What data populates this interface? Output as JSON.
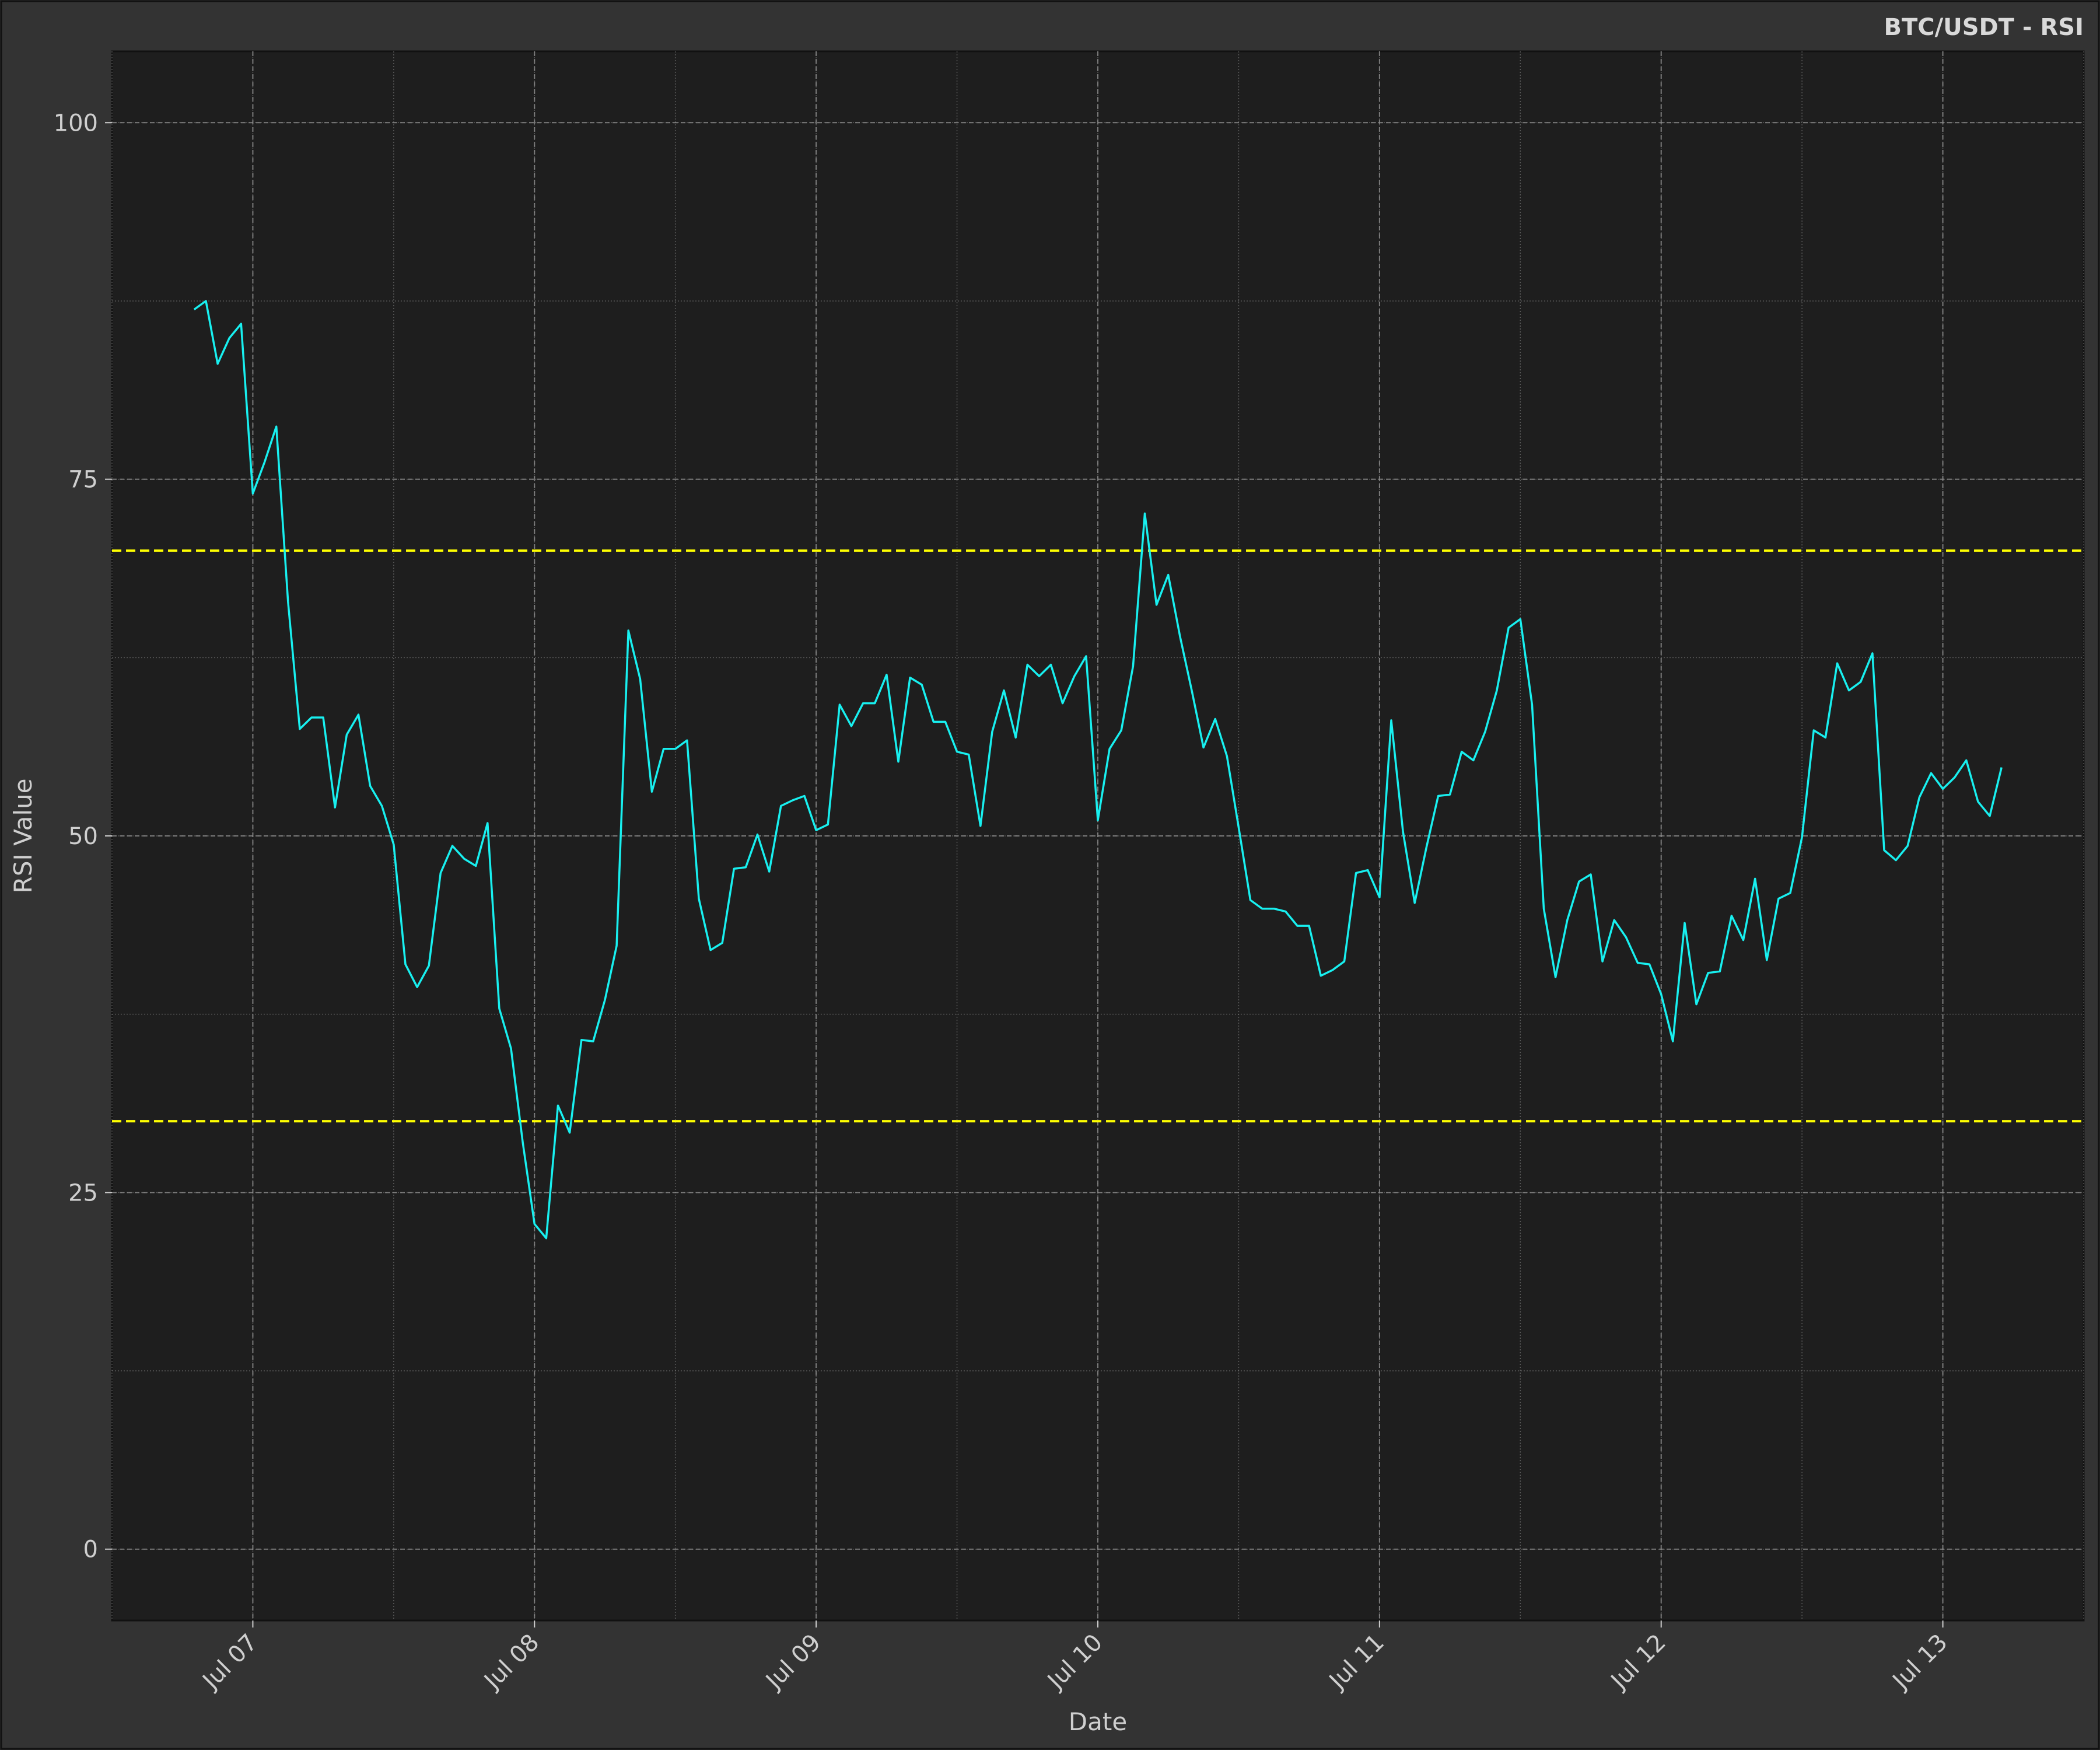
{
  "chart_data": {
    "type": "line",
    "title": "BTC/USDT - RSI",
    "xlabel": "Date",
    "ylabel": "RSI Value",
    "ylim": [
      -5,
      105
    ],
    "xlim": [
      "2025-07-06T12:00",
      "2025-07-13T12:00"
    ],
    "yticks": [
      0,
      25,
      50,
      75,
      100
    ],
    "xticks": [
      {
        "date": "2025-07-07T00:00",
        "label": "Jul 07"
      },
      {
        "date": "2025-07-08T00:00",
        "label": "Jul 08"
      },
      {
        "date": "2025-07-09T00:00",
        "label": "Jul 09"
      },
      {
        "date": "2025-07-10T00:00",
        "label": "Jul 10"
      },
      {
        "date": "2025-07-11T00:00",
        "label": "Jul 11"
      },
      {
        "date": "2025-07-12T00:00",
        "label": "Jul 12"
      },
      {
        "date": "2025-07-13T00:00",
        "label": "Jul 13"
      }
    ],
    "grid": true,
    "reference_lines": [
      {
        "value": 70,
        "color": "#ffff00",
        "style": "dashed"
      },
      {
        "value": 30,
        "color": "#ffff00",
        "style": "dashed"
      }
    ],
    "colors": {
      "line": "#18f0f0",
      "background": "#1e1e1e",
      "figure": "#333333",
      "grid": "#8a8a8a"
    },
    "series": [
      {
        "x": [
          "2025-07-06T19:00",
          "2025-07-06T20:00",
          "2025-07-06T21:00",
          "2025-07-06T22:00",
          "2025-07-06T23:00",
          "2025-07-07T00:00",
          "2025-07-07T01:00",
          "2025-07-07T02:00",
          "2025-07-07T03:00",
          "2025-07-07T04:00",
          "2025-07-07T05:00",
          "2025-07-07T06:00",
          "2025-07-07T07:00",
          "2025-07-07T08:00",
          "2025-07-07T09:00",
          "2025-07-07T10:00",
          "2025-07-07T11:00",
          "2025-07-07T12:00",
          "2025-07-07T13:00",
          "2025-07-07T14:00",
          "2025-07-07T15:00",
          "2025-07-07T16:00",
          "2025-07-07T17:00",
          "2025-07-07T18:00",
          "2025-07-07T19:00",
          "2025-07-07T20:00",
          "2025-07-07T21:00",
          "2025-07-07T22:00",
          "2025-07-07T23:00",
          "2025-07-08T00:00",
          "2025-07-08T01:00",
          "2025-07-08T02:00",
          "2025-07-08T03:00",
          "2025-07-08T04:00",
          "2025-07-08T05:00",
          "2025-07-08T06:00",
          "2025-07-08T07:00",
          "2025-07-08T08:00",
          "2025-07-08T09:00",
          "2025-07-08T10:00",
          "2025-07-08T11:00",
          "2025-07-08T12:00",
          "2025-07-08T13:00",
          "2025-07-08T14:00",
          "2025-07-08T15:00",
          "2025-07-08T16:00",
          "2025-07-08T17:00",
          "2025-07-08T18:00",
          "2025-07-08T19:00",
          "2025-07-08T20:00",
          "2025-07-08T21:00",
          "2025-07-08T22:00",
          "2025-07-08T23:00",
          "2025-07-09T00:00",
          "2025-07-09T01:00",
          "2025-07-09T02:00",
          "2025-07-09T03:00",
          "2025-07-09T04:00",
          "2025-07-09T05:00",
          "2025-07-09T06:00",
          "2025-07-09T07:00",
          "2025-07-09T08:00",
          "2025-07-09T09:00",
          "2025-07-09T10:00",
          "2025-07-09T11:00",
          "2025-07-09T12:00",
          "2025-07-09T13:00",
          "2025-07-09T14:00",
          "2025-07-09T15:00",
          "2025-07-09T16:00",
          "2025-07-09T17:00",
          "2025-07-09T18:00",
          "2025-07-09T19:00",
          "2025-07-09T20:00",
          "2025-07-09T21:00",
          "2025-07-09T22:00",
          "2025-07-09T23:00",
          "2025-07-10T00:00",
          "2025-07-10T01:00",
          "2025-07-10T02:00",
          "2025-07-10T03:00",
          "2025-07-10T04:00",
          "2025-07-10T05:00",
          "2025-07-10T06:00",
          "2025-07-10T07:00",
          "2025-07-10T08:00",
          "2025-07-10T09:00",
          "2025-07-10T10:00",
          "2025-07-10T11:00",
          "2025-07-10T12:00",
          "2025-07-10T13:00",
          "2025-07-10T14:00",
          "2025-07-10T15:00",
          "2025-07-10T16:00",
          "2025-07-10T17:00",
          "2025-07-10T18:00",
          "2025-07-10T19:00",
          "2025-07-10T20:00",
          "2025-07-10T21:00",
          "2025-07-10T22:00",
          "2025-07-10T23:00",
          "2025-07-11T00:00",
          "2025-07-11T01:00",
          "2025-07-11T02:00",
          "2025-07-11T03:00",
          "2025-07-11T04:00",
          "2025-07-11T05:00",
          "2025-07-11T06:00",
          "2025-07-11T07:00",
          "2025-07-11T08:00",
          "2025-07-11T09:00",
          "2025-07-11T10:00",
          "2025-07-11T11:00",
          "2025-07-11T12:00",
          "2025-07-11T13:00",
          "2025-07-11T14:00",
          "2025-07-11T15:00",
          "2025-07-11T16:00",
          "2025-07-11T17:00",
          "2025-07-11T18:00",
          "2025-07-11T19:00",
          "2025-07-11T20:00",
          "2025-07-11T21:00",
          "2025-07-11T22:00",
          "2025-07-11T23:00",
          "2025-07-12T00:00",
          "2025-07-12T01:00",
          "2025-07-12T02:00",
          "2025-07-12T03:00",
          "2025-07-12T04:00",
          "2025-07-12T05:00",
          "2025-07-12T06:00",
          "2025-07-12T07:00",
          "2025-07-12T08:00",
          "2025-07-12T09:00",
          "2025-07-12T10:00",
          "2025-07-12T11:00",
          "2025-07-12T12:00",
          "2025-07-12T13:00",
          "2025-07-12T14:00",
          "2025-07-12T15:00",
          "2025-07-12T16:00",
          "2025-07-12T17:00",
          "2025-07-12T18:00",
          "2025-07-12T19:00",
          "2025-07-12T20:00",
          "2025-07-12T21:00",
          "2025-07-12T22:00",
          "2025-07-12T23:00",
          "2025-07-13T00:00",
          "2025-07-13T01:00",
          "2025-07-13T02:00",
          "2025-07-13T03:00",
          "2025-07-13T04:00",
          "2025-07-13T05:00"
        ],
        "values": [
          86.9,
          87.5,
          83.1,
          84.9,
          85.9,
          74.0,
          76.2,
          78.7,
          66.4,
          57.5,
          58.3,
          58.3,
          52.0,
          57.1,
          58.5,
          53.5,
          52.1,
          49.4,
          41.0,
          39.4,
          40.9,
          47.4,
          49.3,
          48.4,
          47.9,
          50.9,
          37.9,
          35.1,
          28.5,
          22.8,
          21.8,
          31.1,
          29.2,
          35.7,
          35.6,
          38.5,
          42.3,
          64.4,
          61.0,
          53.1,
          56.1,
          56.1,
          56.7,
          45.6,
          42.0,
          42.5,
          47.7,
          47.8,
          50.1,
          47.5,
          52.1,
          52.5,
          52.8,
          50.4,
          50.8,
          59.2,
          57.7,
          59.3,
          59.3,
          61.3,
          55.2,
          61.1,
          60.6,
          58.0,
          58.0,
          55.9,
          55.7,
          50.7,
          57.3,
          60.2,
          56.9,
          62.0,
          61.2,
          62.0,
          59.3,
          61.2,
          62.6,
          51.1,
          56.1,
          57.4,
          61.9,
          72.6,
          66.2,
          68.3,
          64.0,
          60.2,
          56.2,
          58.2,
          55.6,
          50.6,
          45.5,
          44.9,
          44.9,
          44.7,
          43.7,
          43.7,
          40.2,
          40.6,
          41.2,
          47.4,
          47.6,
          45.7,
          58.1,
          50.3,
          45.3,
          49.2,
          52.8,
          52.9,
          55.9,
          55.3,
          57.3,
          60.2,
          64.6,
          65.2,
          59.2,
          44.9,
          40.1,
          44.1,
          46.8,
          47.3,
          41.2,
          44.1,
          42.9,
          41.1,
          41.0,
          38.9,
          35.6,
          43.9,
          38.2,
          40.4,
          40.5,
          44.4,
          42.7,
          47.0,
          41.3,
          45.6,
          46.0,
          49.9,
          57.4,
          56.9,
          62.1,
          60.2,
          60.8,
          62.8,
          49.0,
          48.3,
          49.3,
          52.7,
          54.4,
          53.3,
          54.1,
          55.3,
          52.4,
          51.4,
          54.8
        ]
      }
    ]
  }
}
